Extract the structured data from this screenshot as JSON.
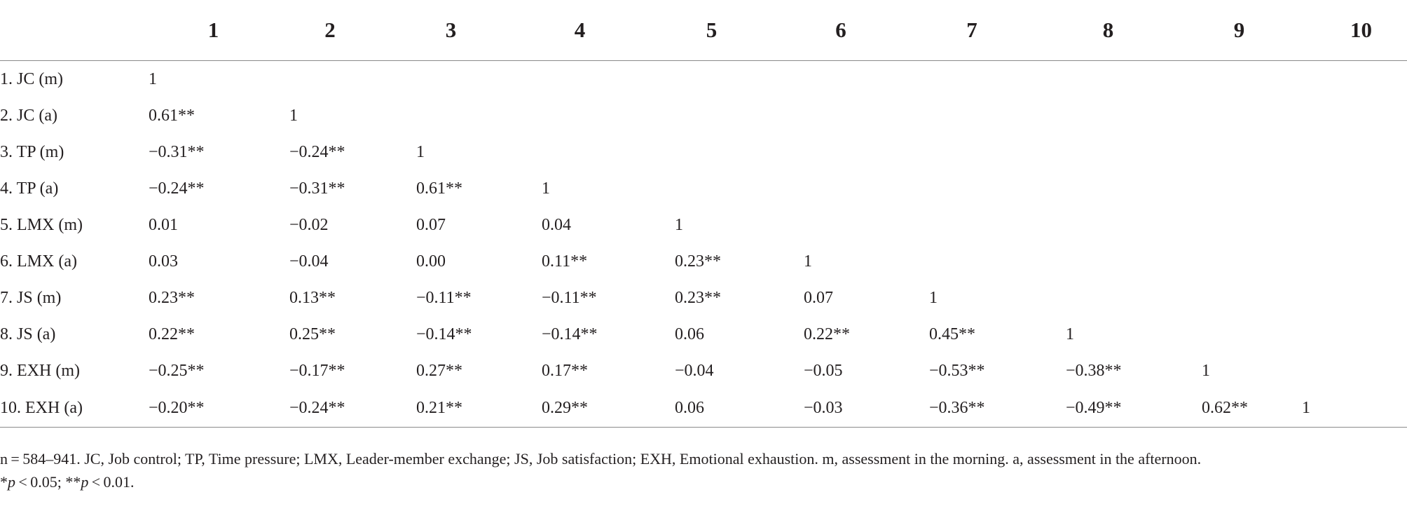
{
  "table": {
    "headers": [
      "1",
      "2",
      "3",
      "4",
      "5",
      "6",
      "7",
      "8",
      "9",
      "10"
    ],
    "rows": [
      {
        "label": "1. JC (m)",
        "values": [
          "1",
          "",
          "",
          "",
          "",
          "",
          "",
          "",
          "",
          ""
        ]
      },
      {
        "label": "2. JC (a)",
        "values": [
          "0.61**",
          "1",
          "",
          "",
          "",
          "",
          "",
          "",
          "",
          ""
        ]
      },
      {
        "label": "3. TP (m)",
        "values": [
          "−0.31**",
          "−0.24**",
          "1",
          "",
          "",
          "",
          "",
          "",
          "",
          ""
        ]
      },
      {
        "label": "4. TP (a)",
        "values": [
          "−0.24**",
          "−0.31**",
          "0.61**",
          "1",
          "",
          "",
          "",
          "",
          "",
          ""
        ]
      },
      {
        "label": "5. LMX (m)",
        "values": [
          "0.01",
          "−0.02",
          "0.07",
          "0.04",
          "1",
          "",
          "",
          "",
          "",
          ""
        ]
      },
      {
        "label": "6. LMX (a)",
        "values": [
          "0.03",
          "−0.04",
          "0.00",
          "0.11**",
          "0.23**",
          "1",
          "",
          "",
          "",
          ""
        ]
      },
      {
        "label": "7. JS (m)",
        "values": [
          "0.23**",
          "0.13**",
          "−0.11**",
          "−0.11**",
          "0.23**",
          "0.07",
          "1",
          "",
          "",
          ""
        ]
      },
      {
        "label": "8. JS (a)",
        "values": [
          "0.22**",
          "0.25**",
          "−0.14**",
          "−0.14**",
          "0.06",
          "0.22**",
          "0.45**",
          "1",
          "",
          ""
        ]
      },
      {
        "label": "9. EXH (m)",
        "values": [
          "−0.25**",
          "−0.17**",
          "0.27**",
          "0.17**",
          "−0.04",
          "−0.05",
          "−0.53**",
          "−0.38**",
          "1",
          ""
        ]
      },
      {
        "label": "10. EXH (a)",
        "values": [
          "−0.20**",
          "−0.24**",
          "0.21**",
          "0.29**",
          "0.06",
          "−0.03",
          "−0.36**",
          "−0.49**",
          "0.62**",
          "1"
        ]
      }
    ]
  },
  "notes": {
    "line1": "n = 584–941. JC, Job control; TP, Time pressure; LMX, Leader-member exchange; JS, Job satisfaction; EXH, Emotional exhaustion. m, assessment in the morning. a, assessment in the afternoon.",
    "sig_star1": "*",
    "sig_p1": "p",
    "sig_rest1": " < 0.05; **",
    "sig_p2": "p",
    "sig_rest2": " < 0.01."
  }
}
